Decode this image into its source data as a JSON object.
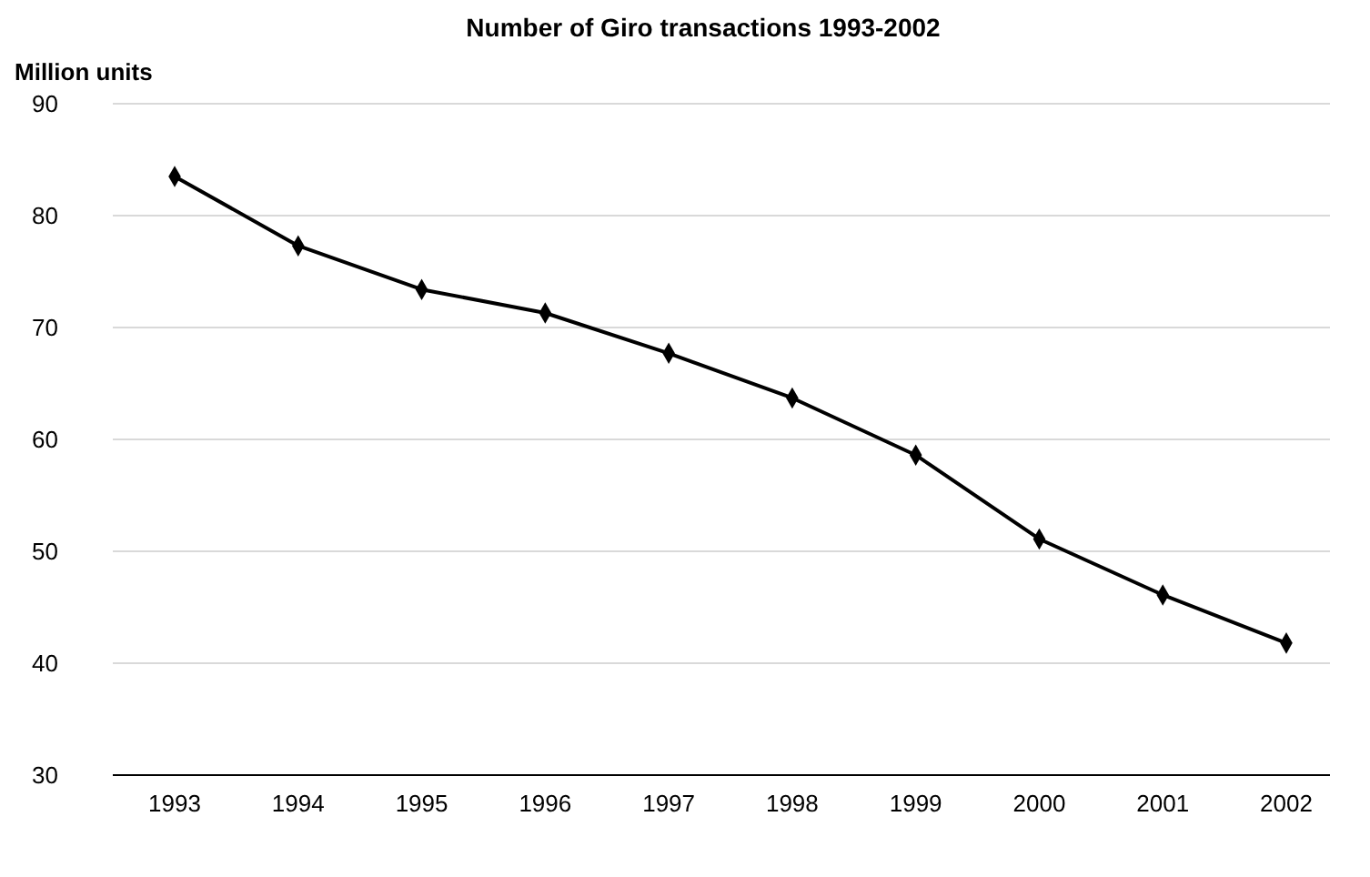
{
  "chart_data": {
    "type": "line",
    "title": "Number of Giro transactions 1993-2002",
    "ylabel": "Million units",
    "categories": [
      "1993",
      "1994",
      "1995",
      "1996",
      "1997",
      "1998",
      "1999",
      "2000",
      "2001",
      "2002"
    ],
    "series": [
      {
        "color": "#000000",
        "values": [
          83.5,
          77.3,
          73.4,
          71.3,
          67.7,
          63.7,
          58.6,
          51.1,
          46.1,
          41.8
        ]
      }
    ],
    "ylim": [
      30,
      90
    ],
    "yticks": [
      30,
      40,
      50,
      60,
      70,
      80,
      90
    ],
    "grid": "y",
    "marker": "diamond",
    "line_style": "solid"
  }
}
